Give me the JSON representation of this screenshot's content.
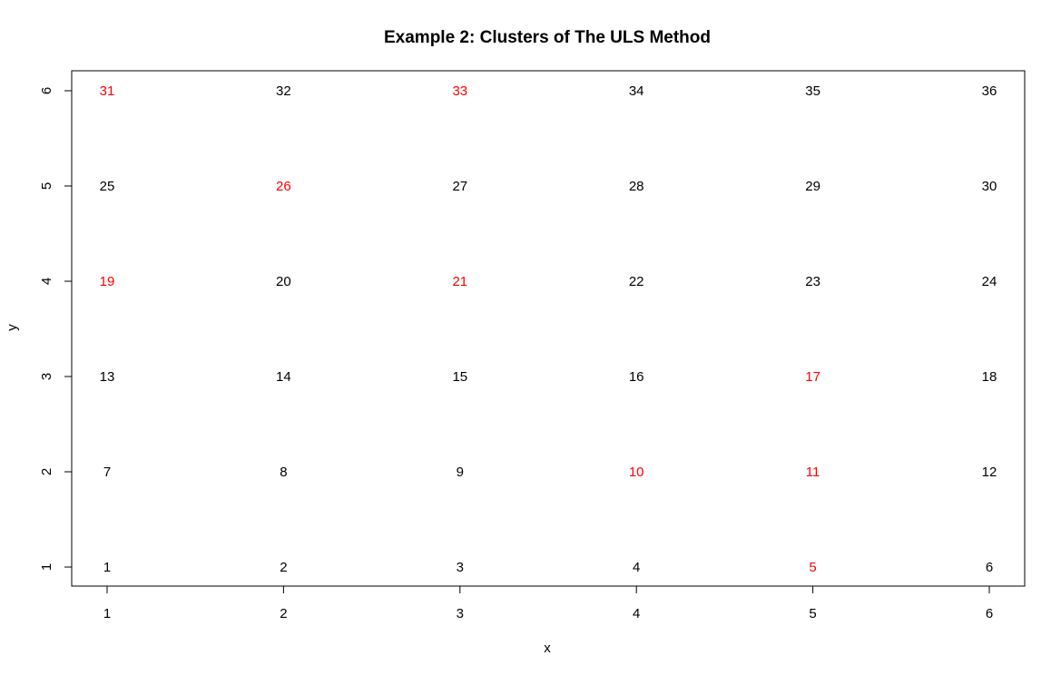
{
  "chart_data": {
    "type": "scatter",
    "title": "Example 2: Clusters of The ULS Method",
    "xlabel": "x",
    "ylabel": "y",
    "xlim": [
      1,
      6
    ],
    "ylim": [
      1,
      6
    ],
    "x_ticks": [
      "1",
      "2",
      "3",
      "4",
      "5",
      "6"
    ],
    "y_ticks": [
      "1",
      "2",
      "3",
      "4",
      "5",
      "6"
    ],
    "grid": false,
    "colors": {
      "default": "#000000",
      "highlight": "#ff0000"
    },
    "points": [
      {
        "x": 1,
        "y": 1,
        "label": "1",
        "highlight": false
      },
      {
        "x": 2,
        "y": 1,
        "label": "2",
        "highlight": false
      },
      {
        "x": 3,
        "y": 1,
        "label": "3",
        "highlight": false
      },
      {
        "x": 4,
        "y": 1,
        "label": "4",
        "highlight": false
      },
      {
        "x": 5,
        "y": 1,
        "label": "5",
        "highlight": true
      },
      {
        "x": 6,
        "y": 1,
        "label": "6",
        "highlight": false
      },
      {
        "x": 1,
        "y": 2,
        "label": "7",
        "highlight": false
      },
      {
        "x": 2,
        "y": 2,
        "label": "8",
        "highlight": false
      },
      {
        "x": 3,
        "y": 2,
        "label": "9",
        "highlight": false
      },
      {
        "x": 4,
        "y": 2,
        "label": "10",
        "highlight": true
      },
      {
        "x": 5,
        "y": 2,
        "label": "11",
        "highlight": true
      },
      {
        "x": 6,
        "y": 2,
        "label": "12",
        "highlight": false
      },
      {
        "x": 1,
        "y": 3,
        "label": "13",
        "highlight": false
      },
      {
        "x": 2,
        "y": 3,
        "label": "14",
        "highlight": false
      },
      {
        "x": 3,
        "y": 3,
        "label": "15",
        "highlight": false
      },
      {
        "x": 4,
        "y": 3,
        "label": "16",
        "highlight": false
      },
      {
        "x": 5,
        "y": 3,
        "label": "17",
        "highlight": true
      },
      {
        "x": 6,
        "y": 3,
        "label": "18",
        "highlight": false
      },
      {
        "x": 1,
        "y": 4,
        "label": "19",
        "highlight": true
      },
      {
        "x": 2,
        "y": 4,
        "label": "20",
        "highlight": false
      },
      {
        "x": 3,
        "y": 4,
        "label": "21",
        "highlight": true
      },
      {
        "x": 4,
        "y": 4,
        "label": "22",
        "highlight": false
      },
      {
        "x": 5,
        "y": 4,
        "label": "23",
        "highlight": false
      },
      {
        "x": 6,
        "y": 4,
        "label": "24",
        "highlight": false
      },
      {
        "x": 1,
        "y": 5,
        "label": "25",
        "highlight": false
      },
      {
        "x": 2,
        "y": 5,
        "label": "26",
        "highlight": true
      },
      {
        "x": 3,
        "y": 5,
        "label": "27",
        "highlight": false
      },
      {
        "x": 4,
        "y": 5,
        "label": "28",
        "highlight": false
      },
      {
        "x": 5,
        "y": 5,
        "label": "29",
        "highlight": false
      },
      {
        "x": 6,
        "y": 5,
        "label": "30",
        "highlight": false
      },
      {
        "x": 1,
        "y": 6,
        "label": "31",
        "highlight": true
      },
      {
        "x": 2,
        "y": 6,
        "label": "32",
        "highlight": false
      },
      {
        "x": 3,
        "y": 6,
        "label": "33",
        "highlight": true
      },
      {
        "x": 4,
        "y": 6,
        "label": "34",
        "highlight": false
      },
      {
        "x": 5,
        "y": 6,
        "label": "35",
        "highlight": false
      },
      {
        "x": 6,
        "y": 6,
        "label": "36",
        "highlight": false
      }
    ]
  }
}
